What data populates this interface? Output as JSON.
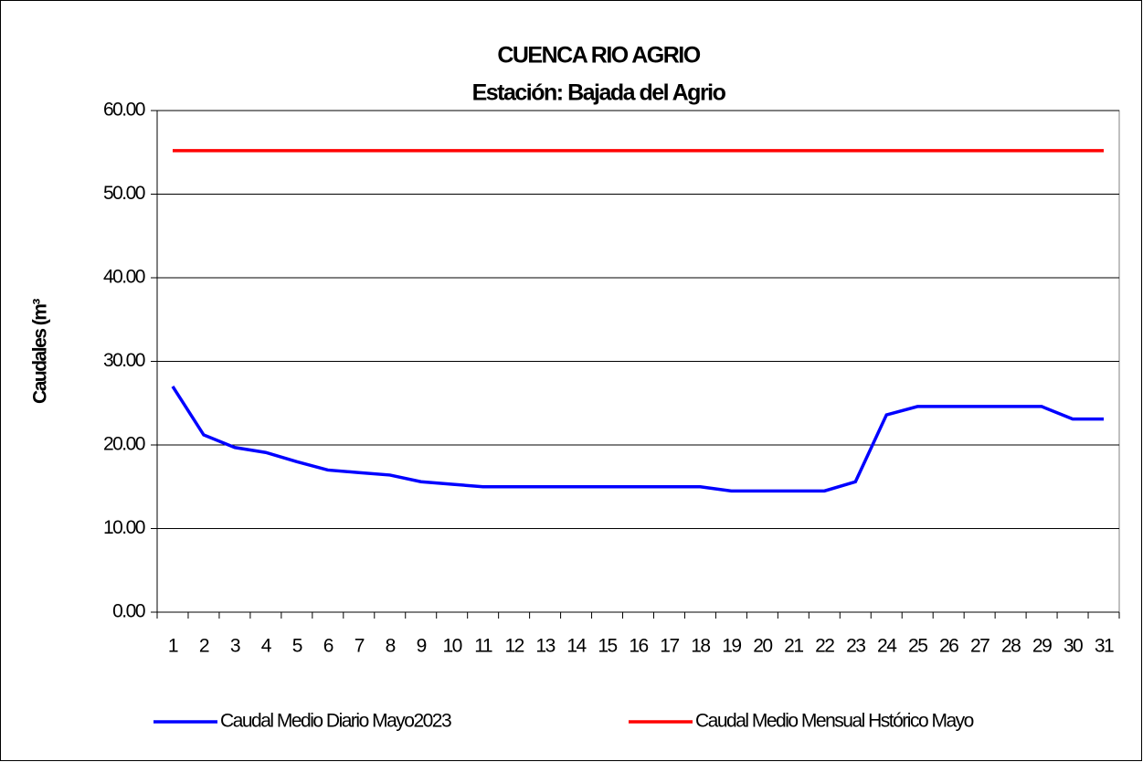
{
  "chart_data": {
    "type": "line",
    "title": "CUENCA RIO AGRIO",
    "subtitle": "Estación: Bajada del Agrio",
    "y_label": "Caudales (m³",
    "categories": [
      "1",
      "2",
      "3",
      "4",
      "5",
      "6",
      "7",
      "8",
      "9",
      "10",
      "11",
      "12",
      "13",
      "14",
      "15",
      "16",
      "17",
      "18",
      "19",
      "20",
      "21",
      "22",
      "23",
      "24",
      "25",
      "26",
      "27",
      "28",
      "29",
      "30",
      "31"
    ],
    "series": [
      {
        "name": "Caudal Medio Diario Mayo2023",
        "color": "#0000ff",
        "values": [
          27.0,
          21.2,
          19.7,
          19.1,
          18.0,
          17.0,
          16.7,
          16.4,
          15.6,
          15.3,
          15.0,
          15.0,
          15.0,
          15.0,
          15.0,
          15.0,
          15.0,
          15.0,
          14.5,
          14.5,
          14.5,
          14.5,
          15.6,
          23.6,
          24.6,
          24.6,
          24.6,
          24.6,
          24.6,
          23.1,
          23.1
        ]
      },
      {
        "name": "Caudal Medio Mensual Hstórico Mayo",
        "color": "#ff0000",
        "values": [
          55.2,
          55.2,
          55.2,
          55.2,
          55.2,
          55.2,
          55.2,
          55.2,
          55.2,
          55.2,
          55.2,
          55.2,
          55.2,
          55.2,
          55.2,
          55.2,
          55.2,
          55.2,
          55.2,
          55.2,
          55.2,
          55.2,
          55.2,
          55.2,
          55.2,
          55.2,
          55.2,
          55.2,
          55.2,
          55.2,
          55.2
        ]
      }
    ],
    "ylim": [
      0,
      60
    ],
    "yticks": [
      {
        "value": 0,
        "label": "0.00"
      },
      {
        "value": 10,
        "label": "10.00"
      },
      {
        "value": 20,
        "label": "20.00"
      },
      {
        "value": 30,
        "label": "30.00"
      },
      {
        "value": 40,
        "label": "40.00"
      },
      {
        "value": 50,
        "label": "50.00"
      },
      {
        "value": 60,
        "label": "60.00"
      }
    ],
    "grid": true,
    "legend": "bottom"
  }
}
